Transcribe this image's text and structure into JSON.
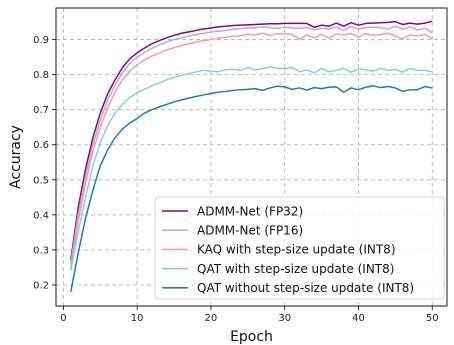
{
  "chart_data": {
    "type": "line",
    "xlabel": "Epoch",
    "ylabel": "Accuracy",
    "xlim": [
      -1,
      52
    ],
    "ylim": [
      0.14,
      0.99
    ],
    "xticks": [
      0,
      10,
      20,
      30,
      40,
      50
    ],
    "yticks": [
      0.2,
      0.3,
      0.4,
      0.5,
      0.6,
      0.7,
      0.8,
      0.9
    ],
    "grid": true,
    "legend_position": "lower-right",
    "series": [
      {
        "name": "ADMM-Net (FP32)",
        "color": "#7b0c7b",
        "x": [
          1,
          2,
          3,
          4,
          5,
          6,
          7,
          8,
          9,
          10,
          11,
          12,
          13,
          14,
          15,
          16,
          17,
          18,
          19,
          20,
          21,
          22,
          23,
          24,
          25,
          26,
          27,
          28,
          29,
          30,
          31,
          32,
          33,
          34,
          35,
          36,
          37,
          38,
          39,
          40,
          41,
          42,
          43,
          44,
          45,
          46,
          47,
          48,
          49,
          50
        ],
        "y": [
          0.27,
          0.42,
          0.53,
          0.62,
          0.69,
          0.745,
          0.785,
          0.82,
          0.845,
          0.862,
          0.876,
          0.888,
          0.897,
          0.905,
          0.912,
          0.918,
          0.922,
          0.926,
          0.93,
          0.933,
          0.936,
          0.938,
          0.94,
          0.941,
          0.942,
          0.943,
          0.944,
          0.945,
          0.945,
          0.946,
          0.946,
          0.946,
          0.946,
          0.935,
          0.941,
          0.938,
          0.947,
          0.938,
          0.948,
          0.941,
          0.946,
          0.947,
          0.948,
          0.949,
          0.951,
          0.943,
          0.947,
          0.944,
          0.947,
          0.952
        ]
      },
      {
        "name": "ADMM-Net (FP16)",
        "color": "#c3a6d8",
        "x": [
          1,
          2,
          3,
          4,
          5,
          6,
          7,
          8,
          9,
          10,
          11,
          12,
          13,
          14,
          15,
          16,
          17,
          18,
          19,
          20,
          21,
          22,
          23,
          24,
          25,
          26,
          27,
          28,
          29,
          30,
          31,
          32,
          33,
          34,
          35,
          36,
          37,
          38,
          39,
          40,
          41,
          42,
          43,
          44,
          45,
          46,
          47,
          48,
          49,
          50
        ],
        "y": [
          0.26,
          0.4,
          0.51,
          0.6,
          0.67,
          0.728,
          0.77,
          0.805,
          0.832,
          0.85,
          0.863,
          0.875,
          0.885,
          0.893,
          0.9,
          0.905,
          0.91,
          0.914,
          0.918,
          0.921,
          0.924,
          0.926,
          0.929,
          0.931,
          0.933,
          0.934,
          0.936,
          0.934,
          0.932,
          0.935,
          0.933,
          0.932,
          0.934,
          0.928,
          0.932,
          0.93,
          0.936,
          0.926,
          0.937,
          0.93,
          0.934,
          0.935,
          0.934,
          0.93,
          0.938,
          0.93,
          0.936,
          0.927,
          0.932,
          0.92
        ]
      },
      {
        "name": "KAQ with step-size update (INT8)",
        "color": "#f4a09a",
        "x": [
          1,
          2,
          3,
          4,
          5,
          6,
          7,
          8,
          9,
          10,
          11,
          12,
          13,
          14,
          15,
          16,
          17,
          18,
          19,
          20,
          21,
          22,
          23,
          24,
          25,
          26,
          27,
          28,
          29,
          30,
          31,
          32,
          33,
          34,
          35,
          36,
          37,
          38,
          39,
          40,
          41,
          42,
          43,
          44,
          45,
          46,
          47,
          48,
          49,
          50
        ],
        "y": [
          0.25,
          0.38,
          0.49,
          0.58,
          0.65,
          0.705,
          0.75,
          0.785,
          0.81,
          0.828,
          0.842,
          0.853,
          0.862,
          0.87,
          0.877,
          0.883,
          0.888,
          0.893,
          0.897,
          0.9,
          0.904,
          0.907,
          0.909,
          0.911,
          0.915,
          0.913,
          0.918,
          0.912,
          0.916,
          0.917,
          0.914,
          0.901,
          0.913,
          0.905,
          0.915,
          0.904,
          0.916,
          0.913,
          0.917,
          0.907,
          0.917,
          0.912,
          0.914,
          0.918,
          0.91,
          0.902,
          0.913,
          0.91,
          0.915,
          0.902
        ]
      },
      {
        "name": "QAT with step-size update (INT8)",
        "color": "#86cfe2",
        "x": [
          1,
          2,
          3,
          4,
          5,
          6,
          7,
          8,
          9,
          10,
          11,
          12,
          13,
          14,
          15,
          16,
          17,
          18,
          19,
          20,
          21,
          22,
          23,
          24,
          25,
          26,
          27,
          28,
          29,
          30,
          31,
          32,
          33,
          34,
          35,
          36,
          37,
          38,
          39,
          40,
          41,
          42,
          43,
          44,
          45,
          46,
          47,
          48,
          49,
          50
        ],
        "y": [
          0.24,
          0.35,
          0.45,
          0.54,
          0.605,
          0.655,
          0.69,
          0.715,
          0.735,
          0.748,
          0.758,
          0.768,
          0.776,
          0.785,
          0.792,
          0.798,
          0.803,
          0.808,
          0.812,
          0.81,
          0.808,
          0.814,
          0.815,
          0.812,
          0.82,
          0.813,
          0.817,
          0.822,
          0.818,
          0.817,
          0.821,
          0.808,
          0.813,
          0.805,
          0.818,
          0.808,
          0.812,
          0.818,
          0.807,
          0.816,
          0.813,
          0.81,
          0.818,
          0.812,
          0.815,
          0.807,
          0.818,
          0.812,
          0.812,
          0.808
        ]
      },
      {
        "name": "QAT without step-size update (INT8)",
        "color": "#2a78ad",
        "x": [
          1,
          2,
          3,
          4,
          5,
          6,
          7,
          8,
          9,
          10,
          11,
          12,
          13,
          14,
          15,
          16,
          17,
          18,
          19,
          20,
          21,
          22,
          23,
          24,
          25,
          26,
          27,
          28,
          29,
          30,
          31,
          32,
          33,
          34,
          35,
          36,
          37,
          38,
          39,
          40,
          41,
          42,
          43,
          44,
          45,
          46,
          47,
          48,
          49,
          50
        ],
        "y": [
          0.18,
          0.29,
          0.39,
          0.47,
          0.54,
          0.585,
          0.62,
          0.645,
          0.662,
          0.675,
          0.69,
          0.7,
          0.708,
          0.715,
          0.722,
          0.728,
          0.733,
          0.738,
          0.742,
          0.746,
          0.75,
          0.752,
          0.755,
          0.757,
          0.758,
          0.76,
          0.755,
          0.762,
          0.767,
          0.765,
          0.758,
          0.762,
          0.756,
          0.763,
          0.76,
          0.764,
          0.765,
          0.75,
          0.762,
          0.757,
          0.764,
          0.768,
          0.763,
          0.766,
          0.762,
          0.752,
          0.757,
          0.757,
          0.766,
          0.762
        ]
      }
    ]
  }
}
